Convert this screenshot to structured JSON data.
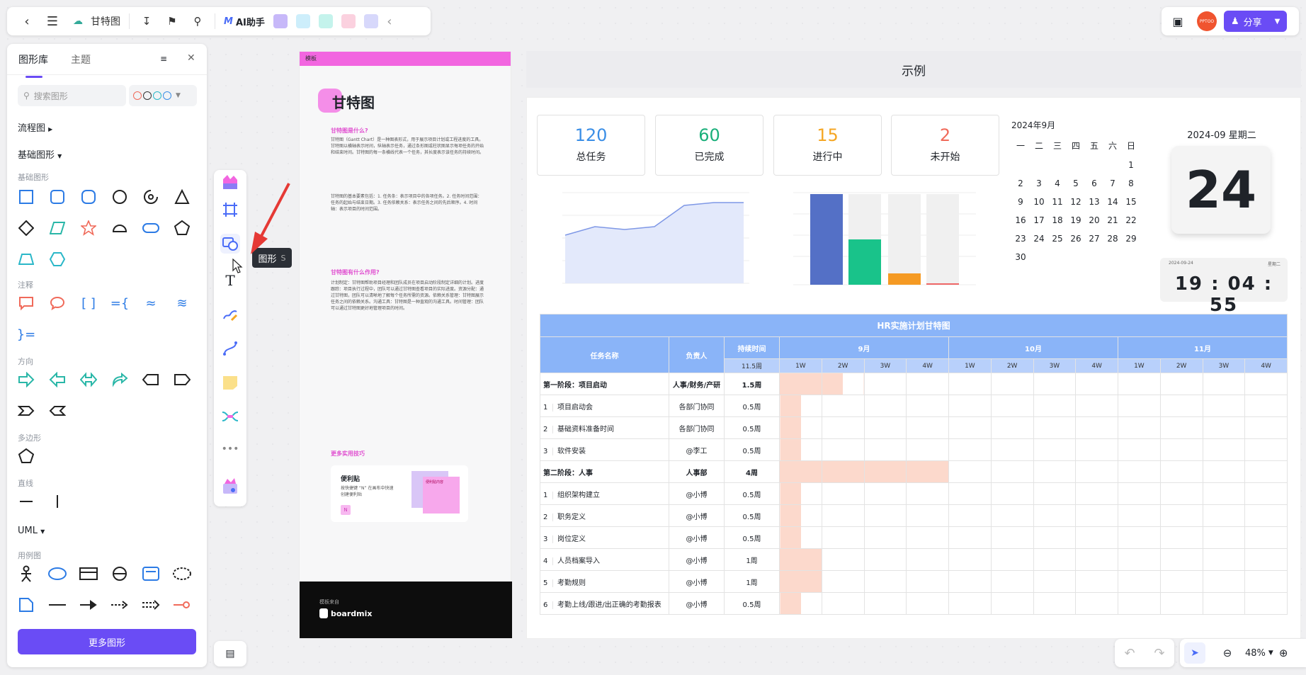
{
  "toolbar": {
    "doc_title": "甘特图",
    "ai_label": "AI助手"
  },
  "topright": {
    "share_label": "分享",
    "avatar_text": "PPTOO"
  },
  "panel": {
    "tabs": [
      "图形库",
      "主题"
    ],
    "search_placeholder": "搜索图形",
    "sections": {
      "flow": "流程图",
      "basic": "基础图形",
      "uml": "UML"
    },
    "subs": {
      "basic": "基础图形",
      "note": "注释",
      "dir": "方向",
      "poly": "多边形",
      "line": "直线",
      "usecase": "用例图"
    },
    "more_label": "更多图形"
  },
  "tooltip": {
    "label": "图形",
    "key": "S"
  },
  "template": {
    "tag": "模板",
    "title": "甘特图",
    "h_what": "甘特图是什么?",
    "p_what": "甘特图（Gantt Chart）是一种图表形式，用于展示项目计划或工程进度的工具。甘特图以横轴表示时间，纵轴表示任务，通过条形图或柱状图显示每项任务的开始和结束时间。甘特图的每一条横线代表一个任务，其长度表示该任务的持续时间。",
    "p_list": "甘特图的基本要素包括：1. 任务条：表示项目中的各项任务。2. 任务时间范围：任务的起始与结束日期。3. 任务依赖关系：表示任务之间的先后顺序。4. 时间轴：表示项目的时间范围。",
    "h_use": "甘特图有什么作用?",
    "p_use": "计划制定：甘特图帮助项目经理和团队成员在项目启动阶段制定详细的计划。进度跟踪：项目执行过程中，团队可以通过甘特图查看项目的实际进度。资源分配：通过甘特图，团队可以清晰地了解每个任务所需的资源。依赖关系管理：甘特图展示任务之间的依赖关系。沟通工具：甘特图是一种直观的沟通工具。时间管理：团队可以通过甘特图更好地管理项目的时间。",
    "h_tips": "更多实用技巧",
    "tip_title": "便利贴",
    "tip_text": "按快捷键 “N” 在画布中快速创建便利贴",
    "tip_key": "N",
    "tip_note": "便利贴内容",
    "footer_from": "模板来自",
    "footer_brand": "boardmix"
  },
  "example": {
    "header": "示例",
    "cards": [
      {
        "num": "120",
        "label": "总任务",
        "color": "#3a8ee6"
      },
      {
        "num": "60",
        "label": "已完成",
        "color": "#1aaf7a"
      },
      {
        "num": "15",
        "label": "进行中",
        "color": "#f5a623"
      },
      {
        "num": "2",
        "label": "未开始",
        "color": "#f06a5a"
      }
    ],
    "calendar": {
      "title": "2024年9月",
      "weekdays": [
        "一",
        "二",
        "三",
        "四",
        "五",
        "六",
        "日"
      ],
      "days": [
        "",
        "",
        "",
        "",
        "",
        "",
        "1",
        "2",
        "3",
        "4",
        "5",
        "6",
        "7",
        "8",
        "9",
        "10",
        "11",
        "12",
        "13",
        "14",
        "15",
        "16",
        "17",
        "18",
        "19",
        "20",
        "21",
        "22",
        "23",
        "24",
        "25",
        "26",
        "27",
        "28",
        "29",
        "30"
      ]
    },
    "flip": {
      "date_line": "2024-09 星期二",
      "day": "24"
    },
    "clock": {
      "date": "2024-09-24",
      "weekday": "星期二",
      "h": "19",
      "m": "04",
      "s": "55"
    },
    "gantt": {
      "title": "HR实施计划甘特图",
      "col_task": "任务名称",
      "col_owner": "负责人",
      "col_dur": "持续时间",
      "dur_total": "11.5周",
      "months": [
        "9月",
        "10月",
        "11月"
      ],
      "weeks": [
        "1W",
        "2W",
        "3W",
        "4W",
        "1W",
        "2W",
        "3W",
        "4W",
        "1W",
        "2W",
        "3W",
        "4W"
      ],
      "rows": [
        {
          "no": "",
          "task": "第一阶段：项目启动",
          "owner": "人事/财务/产研",
          "dur": "1.5周",
          "bold": true,
          "start": 0,
          "len": 3
        },
        {
          "no": "1",
          "task": "项目启动会",
          "owner": "各部门协同",
          "dur": "0.5周",
          "bold": false,
          "start": 0,
          "len": 1
        },
        {
          "no": "2",
          "task": "基础资料准备时间",
          "owner": "各部门协同",
          "dur": "0.5周",
          "bold": false,
          "start": 0,
          "len": 1
        },
        {
          "no": "3",
          "task": "软件安装",
          "owner": "@李工",
          "dur": "0.5周",
          "bold": false,
          "start": 0,
          "len": 1
        },
        {
          "no": "",
          "task": "第二阶段：人事",
          "owner": "人事部",
          "dur": "4周",
          "bold": true,
          "start": 0,
          "len": 8
        },
        {
          "no": "1",
          "task": "组织架构建立",
          "owner": "@小博",
          "dur": "0.5周",
          "bold": false,
          "start": 0,
          "len": 1
        },
        {
          "no": "2",
          "task": "职务定义",
          "owner": "@小博",
          "dur": "0.5周",
          "bold": false,
          "start": 0,
          "len": 1
        },
        {
          "no": "3",
          "task": "岗位定义",
          "owner": "@小博",
          "dur": "0.5周",
          "bold": false,
          "start": 0,
          "len": 1
        },
        {
          "no": "4",
          "task": "人员档案导入",
          "owner": "@小博",
          "dur": "1周",
          "bold": false,
          "start": 0,
          "len": 2
        },
        {
          "no": "5",
          "task": "考勤规则",
          "owner": "@小博",
          "dur": "1周",
          "bold": false,
          "start": 0,
          "len": 2
        },
        {
          "no": "6",
          "task": "考勤上线/跟进/出正确的考勤报表",
          "owner": "@小博",
          "dur": "0.5周",
          "bold": false,
          "start": 0,
          "len": 1
        }
      ]
    }
  },
  "zoom": {
    "value": "48%"
  },
  "colors": {
    "accent": "#6a4cf5",
    "gantt_head": "#8ab4f8",
    "gantt_bar": "#fcd9cc"
  }
}
